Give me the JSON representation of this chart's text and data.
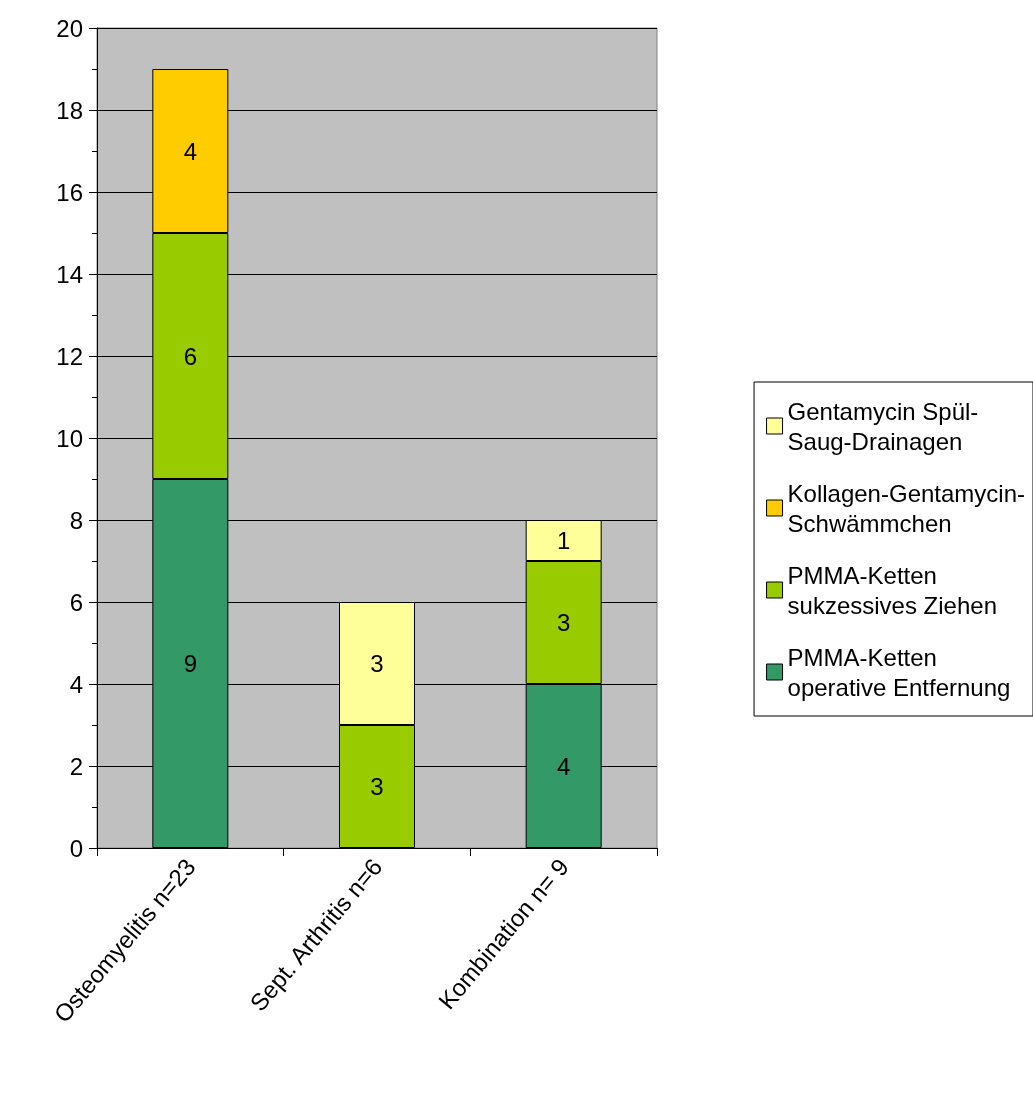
{
  "chart_data": {
    "type": "bar",
    "stacked": true,
    "categories": [
      "Osteomyelitis n=23",
      "Sept. Arthritis n=6",
      "Kombination n= 9"
    ],
    "series": [
      {
        "name": "PMMA-Ketten operative Entfernung",
        "color": "#339966",
        "values": [
          9,
          null,
          4
        ]
      },
      {
        "name": "PMMA-Ketten sukzessives Ziehen",
        "color": "#99cc00",
        "values": [
          6,
          3,
          3
        ]
      },
      {
        "name": "Kollagen-Gentamycin-Schwämmchen",
        "color": "#ffcc00",
        "values": [
          4,
          null,
          null
        ]
      },
      {
        "name": "Gentamycin Spül-Saug-Drainagen",
        "color": "#ffff99",
        "values": [
          null,
          3,
          1
        ]
      }
    ],
    "ylim": [
      0,
      20
    ],
    "yticks": [
      0,
      2,
      4,
      6,
      8,
      10,
      12,
      14,
      16,
      18,
      20
    ],
    "grid": "y",
    "legend": "right",
    "data_labels": true
  }
}
